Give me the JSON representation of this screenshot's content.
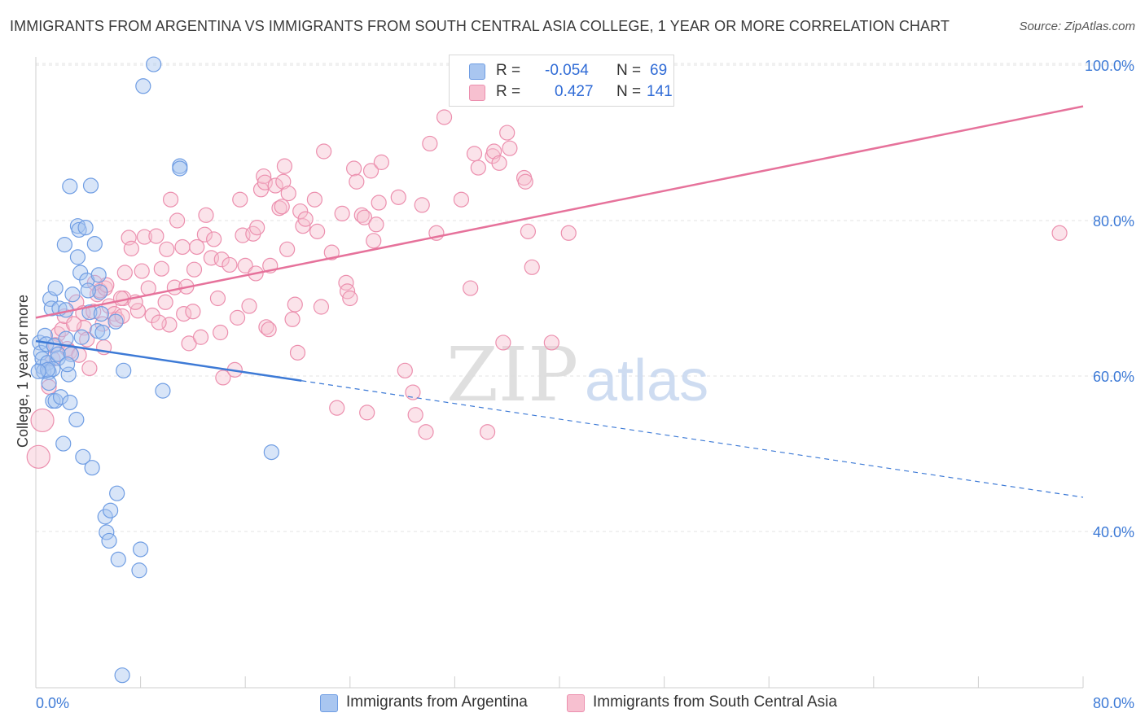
{
  "title": "IMMIGRANTS FROM ARGENTINA VS IMMIGRANTS FROM SOUTH CENTRAL ASIA COLLEGE, 1 YEAR OR MORE CORRELATION CHART",
  "source": "Source: ZipAtlas.com",
  "watermark": {
    "zip": "ZIP",
    "atlas": "atlas"
  },
  "legend": {
    "r_label": "R =",
    "n_label": "N =",
    "series": [
      {
        "name": "Immigrants from Argentina",
        "r": "-0.054",
        "n": "69",
        "fill": "#a9c6f0",
        "stroke": "#6f9de3"
      },
      {
        "name": "Immigrants from South Central Asia",
        "r": "0.427",
        "n": "141",
        "fill": "#f7c0d0",
        "stroke": "#ec8fae"
      }
    ]
  },
  "chart_data": {
    "type": "scatter",
    "title": "IMMIGRANTS FROM ARGENTINA VS IMMIGRANTS FROM SOUTH CENTRAL ASIA COLLEGE, 1 YEAR OR MORE CORRELATION CHART",
    "xlabel": "",
    "ylabel": "College, 1 year or more",
    "xlim": [
      0,
      80
    ],
    "ylim": [
      20,
      102
    ],
    "x_tick_labels": [
      "0.0%",
      "80.0%"
    ],
    "y_ticks": [
      40,
      60,
      80,
      100
    ],
    "y_tick_labels": [
      "40.0%",
      "60.0%",
      "80.0%",
      "100.0%"
    ],
    "grid": true,
    "legend_position": "top-center",
    "colors": {
      "blue": "#3d7ad6",
      "pink": "#e6729b",
      "tick_text": "#3d7ad6"
    },
    "series": [
      {
        "name": "Immigrants from Argentina",
        "color": "#3d7ad6",
        "trend": {
          "x": [
            0,
            20.3
          ],
          "y": [
            64.5,
            59.4
          ],
          "dashed_extension_to": [
            80,
            44.4
          ]
        },
        "points": [
          [
            0.3,
            64.3
          ],
          [
            0.4,
            63.0
          ],
          [
            0.5,
            61.2
          ],
          [
            0.5,
            62.2
          ],
          [
            0.6,
            60.6
          ],
          [
            0.7,
            65.2
          ],
          [
            0.8,
            64.1
          ],
          [
            0.9,
            61.7
          ],
          [
            1.0,
            60.5
          ],
          [
            1.0,
            59.1
          ],
          [
            1.1,
            69.9
          ],
          [
            1.2,
            68.7
          ],
          [
            1.3,
            56.8
          ],
          [
            1.4,
            63.9
          ],
          [
            1.5,
            71.3
          ],
          [
            1.5,
            56.8
          ],
          [
            1.7,
            62.3
          ],
          [
            1.7,
            62.8
          ],
          [
            1.8,
            68.7
          ],
          [
            1.9,
            57.3
          ],
          [
            2.1,
            51.3
          ],
          [
            2.2,
            76.9
          ],
          [
            2.3,
            64.8
          ],
          [
            2.3,
            68.5
          ],
          [
            2.5,
            60.2
          ],
          [
            2.6,
            56.6
          ],
          [
            2.7,
            62.8
          ],
          [
            2.6,
            84.4
          ],
          [
            2.8,
            70.5
          ],
          [
            3.1,
            54.4
          ],
          [
            3.2,
            79.3
          ],
          [
            3.3,
            78.8
          ],
          [
            3.2,
            75.3
          ],
          [
            3.4,
            73.3
          ],
          [
            3.5,
            65.0
          ],
          [
            3.6,
            49.6
          ],
          [
            3.8,
            79.1
          ],
          [
            3.9,
            72.3
          ],
          [
            4.1,
            68.2
          ],
          [
            4.2,
            84.5
          ],
          [
            4.3,
            48.2
          ],
          [
            4.5,
            77.0
          ],
          [
            4.7,
            65.8
          ],
          [
            4.8,
            73.0
          ],
          [
            4.9,
            70.8
          ],
          [
            5.1,
            65.6
          ],
          [
            5.3,
            41.9
          ],
          [
            5.4,
            39.9
          ],
          [
            5.6,
            38.8
          ],
          [
            5.7,
            42.7
          ],
          [
            6.2,
            44.9
          ],
          [
            6.3,
            36.4
          ],
          [
            6.6,
            21.5
          ],
          [
            7.9,
            35.0
          ],
          [
            8.0,
            37.7
          ],
          [
            8.2,
            97.3
          ],
          [
            9.0,
            100.1
          ],
          [
            9.7,
            58.1
          ],
          [
            11.0,
            87.0
          ],
          [
            11.0,
            86.7
          ],
          [
            18.0,
            50.2
          ],
          [
            6.1,
            67.0
          ],
          [
            6.7,
            60.7
          ],
          [
            1.3,
            60.9
          ],
          [
            0.9,
            60.8
          ],
          [
            0.2,
            60.6
          ],
          [
            2.4,
            61.5
          ],
          [
            5.0,
            68.0
          ],
          [
            4.0,
            71.0
          ]
        ]
      },
      {
        "name": "Immigrants from South Central Asia",
        "color": "#e6729b",
        "trend": {
          "x": [
            0,
            80
          ],
          "y": [
            67.5,
            94.7
          ]
        },
        "points": [
          [
            0.2,
            49.6
          ],
          [
            0.5,
            54.3
          ],
          [
            1.0,
            58.6
          ],
          [
            1.3,
            62.2
          ],
          [
            1.7,
            65.4
          ],
          [
            2.0,
            66.0
          ],
          [
            2.2,
            67.7
          ],
          [
            2.4,
            63.5
          ],
          [
            2.6,
            63.1
          ],
          [
            3.1,
            69.5
          ],
          [
            3.3,
            62.7
          ],
          [
            3.6,
            68.1
          ],
          [
            3.7,
            66.2
          ],
          [
            3.9,
            64.7
          ],
          [
            4.1,
            61.0
          ],
          [
            4.4,
            68.3
          ],
          [
            4.7,
            70.5
          ],
          [
            4.9,
            71.0
          ],
          [
            5.1,
            66.7
          ],
          [
            5.2,
            63.7
          ],
          [
            5.3,
            71.3
          ],
          [
            5.4,
            71.7
          ],
          [
            5.6,
            69.0
          ],
          [
            6.0,
            68.0
          ],
          [
            6.2,
            67.3
          ],
          [
            6.6,
            67.7
          ],
          [
            6.7,
            70.0
          ],
          [
            6.8,
            73.3
          ],
          [
            7.1,
            77.8
          ],
          [
            7.3,
            76.4
          ],
          [
            7.8,
            68.4
          ],
          [
            8.1,
            73.5
          ],
          [
            8.3,
            77.9
          ],
          [
            8.6,
            71.3
          ],
          [
            8.9,
            67.8
          ],
          [
            9.2,
            78.0
          ],
          [
            9.6,
            73.8
          ],
          [
            9.9,
            69.5
          ],
          [
            10.0,
            76.3
          ],
          [
            10.2,
            66.6
          ],
          [
            10.3,
            82.7
          ],
          [
            10.6,
            71.4
          ],
          [
            10.8,
            80.0
          ],
          [
            11.2,
            76.6
          ],
          [
            11.3,
            68.0
          ],
          [
            11.5,
            71.5
          ],
          [
            11.7,
            64.2
          ],
          [
            12.1,
            73.7
          ],
          [
            12.3,
            76.6
          ],
          [
            12.6,
            65.0
          ],
          [
            12.9,
            78.2
          ],
          [
            13.0,
            80.7
          ],
          [
            13.4,
            75.2
          ],
          [
            13.6,
            77.6
          ],
          [
            13.9,
            70.0
          ],
          [
            14.1,
            65.6
          ],
          [
            14.2,
            75.0
          ],
          [
            14.3,
            59.8
          ],
          [
            14.8,
            74.3
          ],
          [
            15.2,
            60.8
          ],
          [
            15.4,
            67.5
          ],
          [
            15.6,
            82.7
          ],
          [
            15.8,
            78.1
          ],
          [
            16.0,
            74.2
          ],
          [
            16.3,
            69.0
          ],
          [
            16.6,
            78.3
          ],
          [
            16.8,
            73.2
          ],
          [
            16.9,
            79.1
          ],
          [
            17.2,
            84.0
          ],
          [
            17.4,
            85.7
          ],
          [
            17.5,
            84.9
          ],
          [
            17.6,
            66.3
          ],
          [
            17.8,
            66.0
          ],
          [
            17.9,
            74.2
          ],
          [
            18.3,
            84.5
          ],
          [
            18.6,
            81.6
          ],
          [
            18.8,
            81.8
          ],
          [
            18.9,
            85.0
          ],
          [
            19.0,
            87.0
          ],
          [
            19.2,
            76.3
          ],
          [
            19.3,
            83.5
          ],
          [
            19.6,
            67.3
          ],
          [
            19.8,
            69.2
          ],
          [
            20.0,
            63.0
          ],
          [
            20.2,
            81.2
          ],
          [
            20.4,
            79.3
          ],
          [
            20.6,
            80.2
          ],
          [
            21.3,
            82.7
          ],
          [
            21.5,
            78.6
          ],
          [
            21.8,
            68.9
          ],
          [
            22.0,
            88.9
          ],
          [
            22.6,
            75.9
          ],
          [
            23.0,
            55.9
          ],
          [
            23.4,
            80.9
          ],
          [
            23.7,
            72.0
          ],
          [
            23.8,
            70.9
          ],
          [
            24.0,
            70.0
          ],
          [
            24.3,
            86.7
          ],
          [
            24.5,
            85.0
          ],
          [
            24.9,
            80.7
          ],
          [
            25.1,
            80.4
          ],
          [
            25.3,
            55.3
          ],
          [
            25.6,
            86.4
          ],
          [
            25.8,
            77.4
          ],
          [
            26.0,
            79.5
          ],
          [
            26.2,
            82.3
          ],
          [
            26.4,
            87.5
          ],
          [
            27.7,
            83.0
          ],
          [
            28.2,
            60.7
          ],
          [
            28.8,
            57.9
          ],
          [
            29.0,
            55.0
          ],
          [
            29.5,
            82.0
          ],
          [
            29.8,
            52.8
          ],
          [
            30.1,
            89.9
          ],
          [
            30.6,
            78.4
          ],
          [
            31.2,
            93.3
          ],
          [
            32.5,
            82.7
          ],
          [
            33.2,
            71.3
          ],
          [
            33.5,
            88.6
          ],
          [
            33.8,
            86.8
          ],
          [
            34.5,
            52.8
          ],
          [
            34.9,
            88.3
          ],
          [
            35.0,
            88.9
          ],
          [
            35.4,
            87.4
          ],
          [
            35.7,
            64.3
          ],
          [
            36.0,
            91.3
          ],
          [
            36.2,
            89.3
          ],
          [
            37.3,
            85.5
          ],
          [
            37.4,
            85.0
          ],
          [
            37.6,
            78.6
          ],
          [
            37.9,
            74.0
          ],
          [
            39.4,
            64.3
          ],
          [
            40.7,
            78.4
          ],
          [
            78.2,
            78.4
          ],
          [
            1.5,
            64.0
          ],
          [
            2.9,
            66.7
          ],
          [
            6.5,
            70.0
          ],
          [
            9.4,
            66.9
          ],
          [
            12.0,
            68.3
          ],
          [
            7.6,
            69.5
          ],
          [
            4.5,
            72.0
          ]
        ]
      }
    ]
  }
}
